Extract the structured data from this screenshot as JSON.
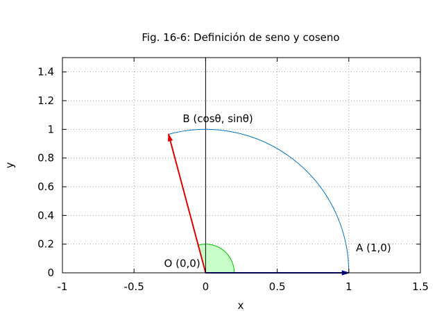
{
  "chart_data": {
    "type": "line",
    "title": "Fig. 16-6: Definición de seno y coseno",
    "xlabel": "x",
    "ylabel": "y",
    "xlim": [
      -1,
      1.5
    ],
    "ylim": [
      0,
      1.5
    ],
    "x_ticks": [
      -1,
      -0.5,
      0,
      0.5,
      1,
      1.5
    ],
    "x_tick_labels": [
      "-1",
      "-0.5",
      "0",
      "0.5",
      "1",
      "1.5"
    ],
    "y_ticks": [
      0,
      0.2,
      0.4,
      0.6,
      0.8,
      1,
      1.2,
      1.4
    ],
    "y_tick_labels": [
      "0",
      "0.2",
      "0.4",
      "0.6",
      "0.8",
      "1",
      "1.2",
      "1.4"
    ],
    "grid": true,
    "angle_theta_deg": 105,
    "unit_arc": {
      "radius": 1,
      "from_deg": 0,
      "to_deg": 105,
      "color": "#0072bd"
    },
    "angle_sector": {
      "radius": 0.2,
      "from_deg": 0,
      "to_deg": 105,
      "fill": "#c8ffc8",
      "stroke": "#00c000"
    },
    "vectors": [
      {
        "from": [
          0,
          0
        ],
        "to": [
          1,
          0
        ],
        "color": "#0000aa"
      },
      {
        "from": [
          0,
          0
        ],
        "to": [
          -0.259,
          0.966
        ],
        "color": "#dd0000"
      }
    ],
    "annotations": [
      {
        "text": "B (cosθ, sinθ)",
        "x": -0.16,
        "y": 1.05
      },
      {
        "text": "A (1,0)",
        "x": 1.05,
        "y": 0.15
      },
      {
        "text": "O (0,0)",
        "x": -0.29,
        "y": 0.04
      }
    ],
    "vertical_line_x": 0
  }
}
